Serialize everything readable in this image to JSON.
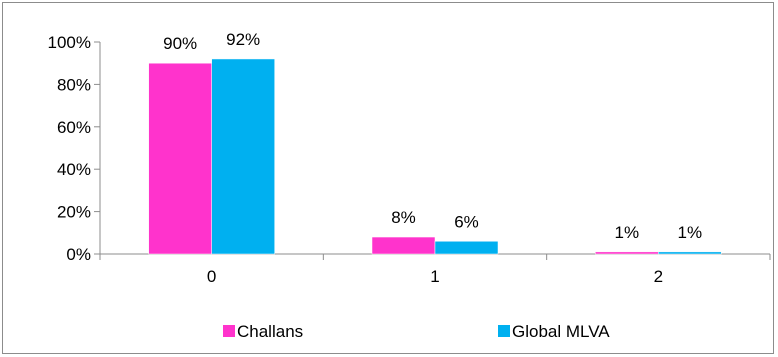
{
  "chart_data": {
    "type": "bar",
    "categories": [
      "0",
      "1",
      "2"
    ],
    "series": [
      {
        "name": "Challans",
        "values": [
          90,
          8,
          1
        ],
        "labels": [
          "90%",
          "8%",
          "1%"
        ],
        "color": "#ff33cc"
      },
      {
        "name": "Global MLVA",
        "values": [
          92,
          6,
          1
        ],
        "labels": [
          "92%",
          "6%",
          "1%"
        ],
        "color": "#00b0f0"
      }
    ],
    "ylim": [
      0,
      100
    ],
    "yticks": [
      0,
      20,
      40,
      60,
      80,
      100
    ],
    "ytick_labels": [
      "0%",
      "20%",
      "40%",
      "60%",
      "80%",
      "100%"
    ],
    "grid": false,
    "legend_position": "bottom",
    "title": "",
    "xlabel": "",
    "ylabel": ""
  }
}
